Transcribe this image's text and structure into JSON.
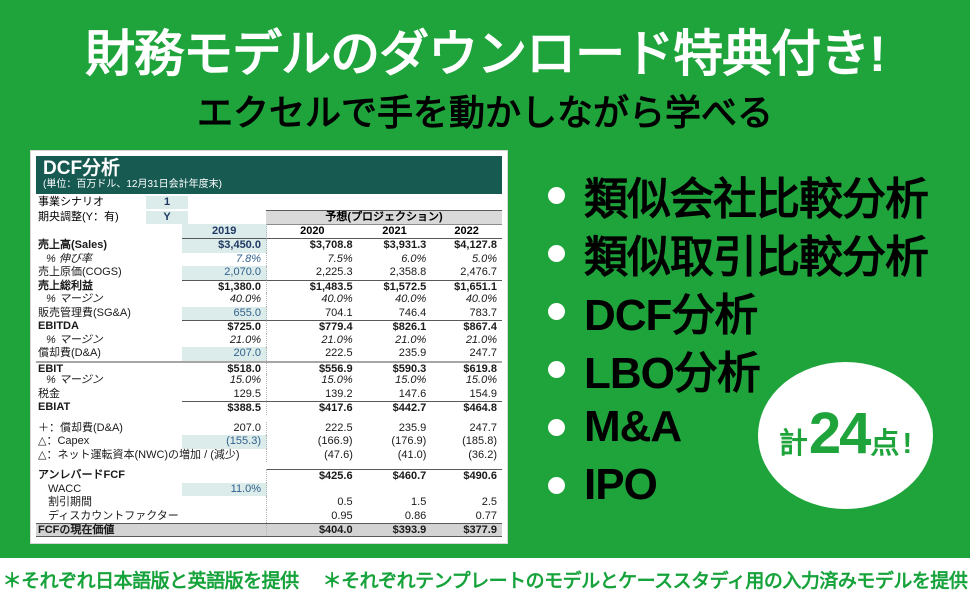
{
  "header": {
    "title": "財務モデルのダウンロード特典付き!",
    "subtitle": "エクセルで手を動かしながら学べる"
  },
  "spreadsheet": {
    "title": "DCF分析",
    "unit_note": "(単位：百万ドル、12月31日会計年度末)",
    "scenario_label": "事業シナリオ",
    "scenario_value": "1",
    "midyear_label": "期央調整(Y：有)",
    "midyear_value": "Y",
    "forecast_banner": "予想(プロジェクション)",
    "years": [
      "2019",
      "2020",
      "2021",
      "2022"
    ],
    "rows": [
      {
        "label": "売上高(Sales)",
        "cls": "b navy1 input",
        "values": [
          "$3,450.0",
          "$3,708.8",
          "$3,931.3",
          "$4,127.8"
        ]
      },
      {
        "label": "% 伸び率",
        "cls": "i blue1",
        "values": [
          "7.8%",
          "7.5%",
          "6.0%",
          "5.0%"
        ]
      },
      {
        "label": "売上原価(COGS)",
        "cls": "input",
        "values": [
          "2,070.0",
          "2,225.3",
          "2,358.8",
          "2,476.7"
        ]
      },
      {
        "label": "売上総利益",
        "cls": "b bt",
        "values": [
          "$1,380.0",
          "$1,483.5",
          "$1,572.5",
          "$1,651.1"
        ]
      },
      {
        "label": "% マージン",
        "cls": "i",
        "values": [
          "40.0%",
          "40.0%",
          "40.0%",
          "40.0%"
        ]
      },
      {
        "label": "販売管理費(SG&A)",
        "cls": "input",
        "values": [
          "655.0",
          "704.1",
          "746.4",
          "783.7"
        ]
      },
      {
        "label": "EBITDA",
        "cls": "b bt",
        "values": [
          "$725.0",
          "$779.4",
          "$826.1",
          "$867.4"
        ]
      },
      {
        "label": "% マージン",
        "cls": "i",
        "values": [
          "21.0%",
          "21.0%",
          "21.0%",
          "21.0%"
        ]
      },
      {
        "label": "償却費(D&A)",
        "cls": "input",
        "values": [
          "207.0",
          "222.5",
          "235.9",
          "247.7"
        ]
      },
      {
        "label": "EBIT",
        "cls": "b btfull",
        "values": [
          "$518.0",
          "$556.9",
          "$590.3",
          "$619.8"
        ]
      },
      {
        "label": "% マージン",
        "cls": "i",
        "values": [
          "15.0%",
          "15.0%",
          "15.0%",
          "15.0%"
        ]
      },
      {
        "label": "税金",
        "cls": "",
        "values": [
          "129.5",
          "139.2",
          "147.6",
          "154.9"
        ]
      },
      {
        "label": "EBIAT",
        "cls": "b bt",
        "values": [
          "$388.5",
          "$417.6",
          "$442.7",
          "$464.8"
        ]
      },
      {
        "spacer": true,
        "cls": "sp"
      },
      {
        "label": "＋：償却費(D&A)",
        "cls": "",
        "values": [
          "207.0",
          "222.5",
          "235.9",
          "247.7"
        ]
      },
      {
        "label": "△：Capex",
        "cls": "input",
        "values": [
          "(155.3)",
          "(166.9)",
          "(176.9)",
          "(185.8)"
        ]
      },
      {
        "label": "△：ネット運転資本(NWC)の増加 / (減少)",
        "cls": "",
        "values": [
          "",
          "(47.6)",
          "(41.0)",
          "(36.2)"
        ]
      },
      {
        "spacer": true,
        "cls": "sp"
      },
      {
        "label": "アンレバードFCF",
        "cls": "b btf",
        "values": [
          "",
          "$425.6",
          "$460.7",
          "$490.6"
        ]
      },
      {
        "label": "WACC",
        "cls": "ind input blue1",
        "values": [
          "11.0%",
          "",
          "",
          ""
        ]
      },
      {
        "label": "割引期間",
        "cls": "ind",
        "values": [
          "",
          "0.5",
          "1.5",
          "2.5"
        ]
      },
      {
        "label": "ディスカウントファクター",
        "cls": "ind",
        "values": [
          "",
          "0.95",
          "0.86",
          "0.77"
        ]
      },
      {
        "label": "FCFの現在価値",
        "cls": "b gray",
        "values": [
          "",
          "$404.0",
          "$393.9",
          "$377.9"
        ]
      }
    ]
  },
  "features": {
    "items": [
      "類似会社比較分析",
      "類似取引比較分析",
      "DCF分析",
      "LBO分析",
      "M&A",
      "IPO"
    ]
  },
  "badge": {
    "prefix": "計",
    "number": "24",
    "suffix": "点",
    "exclaim": "!"
  },
  "footnotes": [
    "＊それぞれ日本語版と英語版を提供",
    "＊それぞれテンプレートのモデルとケーススタディ用の入力済みモデルを提供"
  ],
  "colors": {
    "background_green": "#1fa43c",
    "sheet_header_teal": "#175a52",
    "input_cell_teal": "#dbecea",
    "forecast_banner_gray": "#d9d9d9",
    "result_row_gray": "#d3d3d3",
    "footnote_green": "#17a33b",
    "input_text_blue": "#31618e"
  }
}
